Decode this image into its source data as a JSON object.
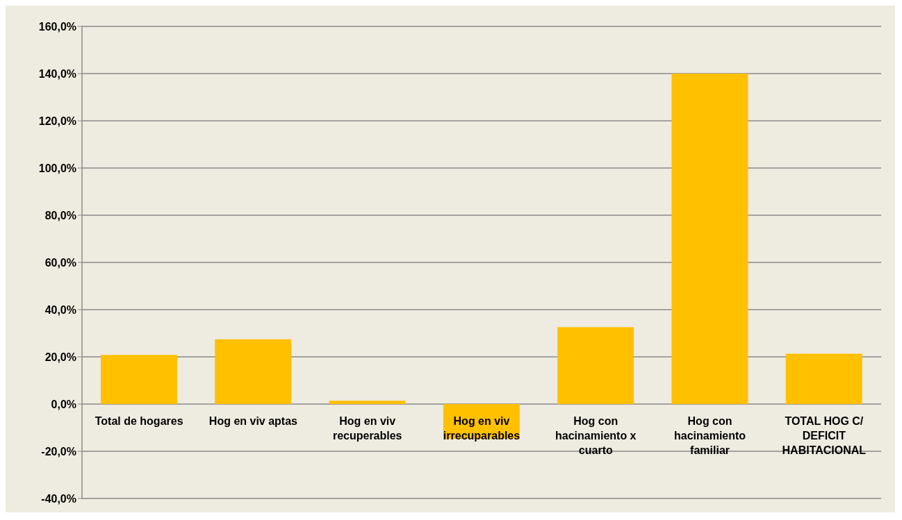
{
  "chart_data": {
    "type": "bar",
    "categories": [
      "Total de hogares",
      "Hog en viv aptas",
      "Hog en viv recuperables",
      "Hog en viv irrecuparables",
      "Hog con hacinamiento x cuarto",
      "Hog con hacinamiento familiar",
      "TOTAL HOG C/ DEFICIT HABITACIONAL"
    ],
    "values": [
      20.8,
      27.4,
      1.4,
      -14.8,
      32.6,
      140.0,
      21.3
    ],
    "color": "#ffc000",
    "ylim": [
      -40,
      160
    ],
    "yticks": [
      {
        "value": -40,
        "label": "-40,0%"
      },
      {
        "value": -20,
        "label": "-20,0%"
      },
      {
        "value": 0,
        "label": "0,0%"
      },
      {
        "value": 20,
        "label": "20,0%"
      },
      {
        "value": 40,
        "label": "40,0%"
      },
      {
        "value": 60,
        "label": "60,0%"
      },
      {
        "value": 80,
        "label": "80,0%"
      },
      {
        "value": 100,
        "label": "100,0%"
      },
      {
        "value": 120,
        "label": "120,0%"
      },
      {
        "value": 140,
        "label": "140,0%"
      },
      {
        "value": 160,
        "label": "160,0%"
      }
    ],
    "grid": "y"
  }
}
